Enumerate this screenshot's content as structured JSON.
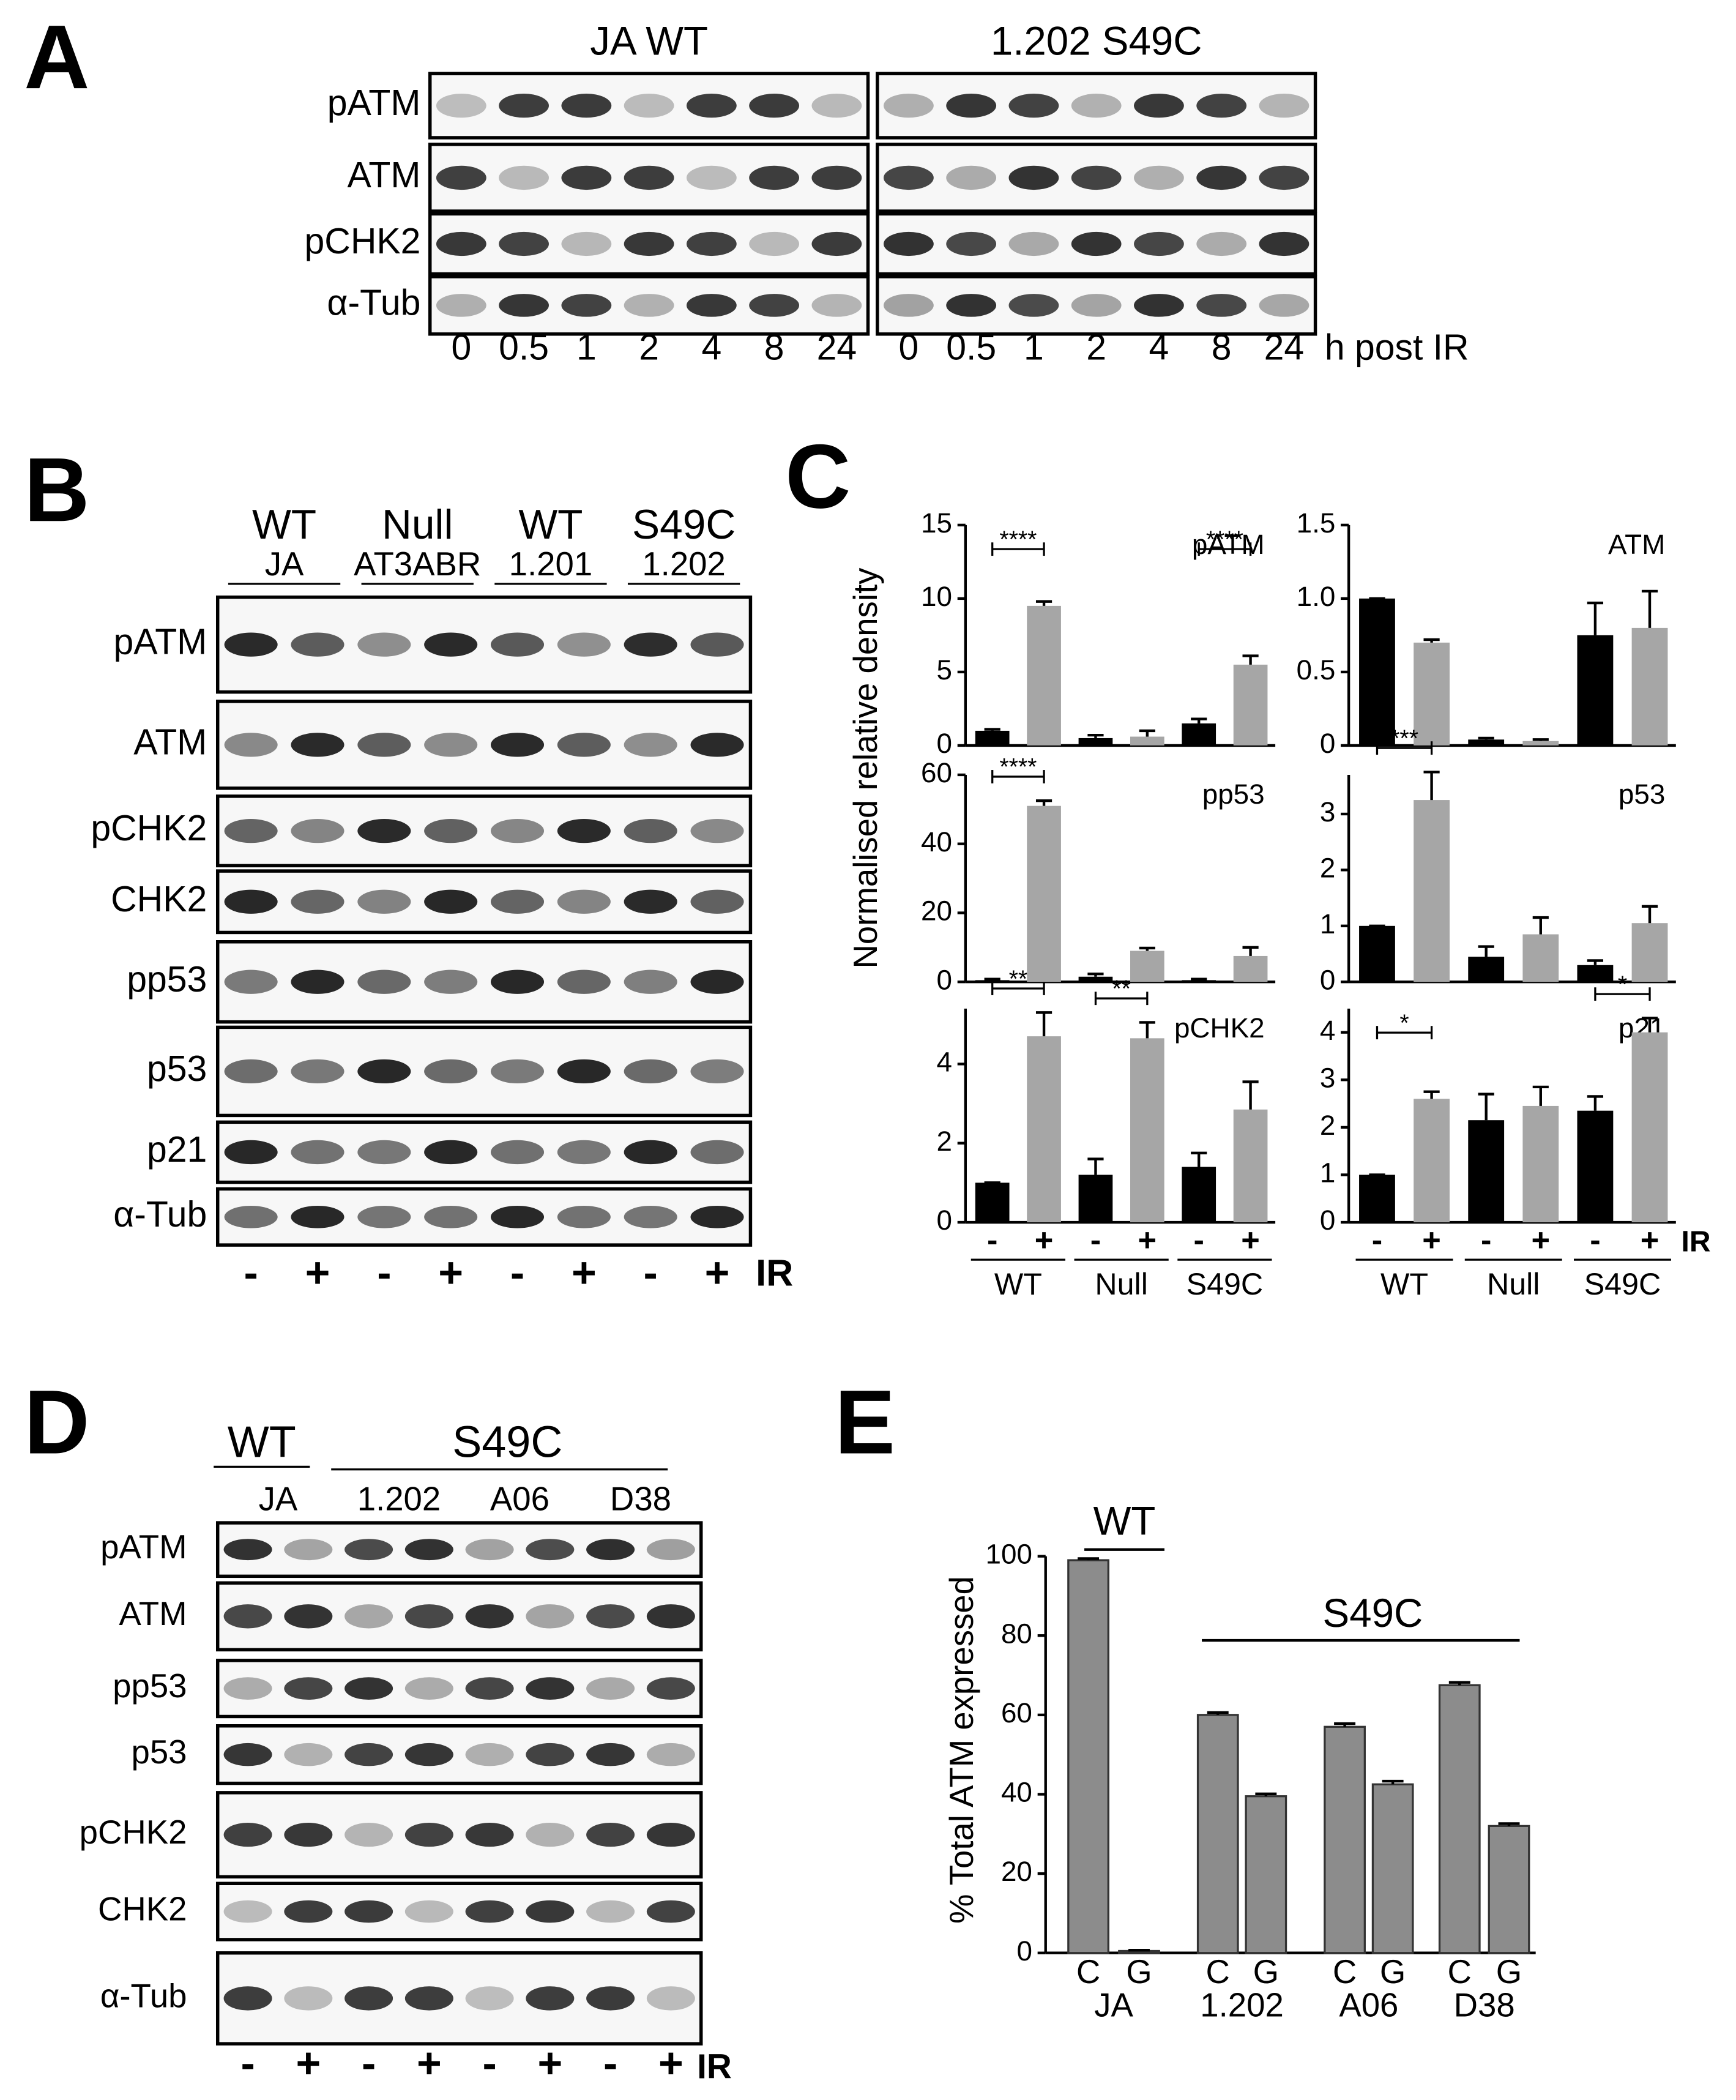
{
  "panel_a": {
    "label": "A",
    "groups": [
      "JA WT",
      "1.202 S49C"
    ],
    "rows": [
      "pATM",
      "ATM",
      "pCHK2",
      "α-Tub"
    ],
    "lanes": [
      "0",
      "0.5",
      "1",
      "2",
      "4",
      "8",
      "24",
      "0",
      "0.5",
      "1",
      "2",
      "4",
      "8",
      "24"
    ],
    "lane_unit": "h post IR"
  },
  "panel_b": {
    "label": "B",
    "groups": [
      {
        "genotype": "WT",
        "line": "JA"
      },
      {
        "genotype": "Null",
        "line": "AT3ABR"
      },
      {
        "genotype": "WT",
        "line": "1.201"
      },
      {
        "genotype": "S49C",
        "line": "1.202"
      }
    ],
    "rows": [
      "pATM",
      "ATM",
      "pCHK2",
      "CHK2",
      "pp53",
      "p53",
      "p21",
      "α-Tub"
    ],
    "treatment": [
      "-",
      "+",
      "-",
      "+",
      "-",
      "+",
      "-",
      "+"
    ],
    "treatment_label": "IR"
  },
  "panel_c": {
    "label": "C",
    "ylabel": "Normalised relative density",
    "treatment_label": "IR"
  },
  "panel_d": {
    "label": "D",
    "genotypes": [
      "WT",
      "S49C"
    ],
    "lines": [
      "JA",
      "1.202",
      "A06",
      "D38"
    ],
    "rows": [
      "pATM",
      "ATM",
      "pp53",
      "p53",
      "pCHK2",
      "CHK2",
      "α-Tub"
    ],
    "treatment": [
      "-",
      "+",
      "-",
      "+",
      "-",
      "+",
      "-",
      "+"
    ],
    "treatment_label": "IR"
  },
  "panel_e": {
    "label": "E"
  },
  "chart_data": [
    {
      "type": "bar",
      "title": "pATM",
      "ylim": [
        0,
        15
      ],
      "yticks": [
        0,
        5,
        10,
        15
      ],
      "series": [
        {
          "color": "#000000",
          "values": [
            1,
            0.5,
            1.5
          ],
          "errors": [
            0.1,
            0.2,
            0.3
          ]
        },
        {
          "color": "#a6a6a6",
          "values": [
            9.5,
            0.6,
            5.5
          ],
          "errors": [
            0.3,
            0.4,
            0.6
          ]
        }
      ],
      "significance": [
        "****",
        null,
        "****"
      ]
    },
    {
      "type": "bar",
      "title": "ATM",
      "ylim": [
        0,
        1.5
      ],
      "yticks": [
        0,
        0.5,
        {
          "value": 1,
          "label": "1.0"
        },
        1.5
      ],
      "series": [
        {
          "color": "#000000",
          "values": [
            1,
            0.04,
            0.75
          ],
          "errors": [
            0,
            0.01,
            0.22
          ]
        },
        {
          "color": "#a6a6a6",
          "values": [
            0.7,
            0.03,
            0.8
          ],
          "errors": [
            0.02,
            0.01,
            0.25
          ]
        }
      ],
      "significance": [
        null,
        null,
        null
      ]
    },
    {
      "type": "bar",
      "title": "pp53",
      "ylim": [
        0,
        60
      ],
      "yticks": [
        0,
        20,
        40,
        60
      ],
      "series": [
        {
          "color": "#000000",
          "values": [
            0.5,
            1.5,
            0.5
          ],
          "errors": [
            0.3,
            0.8,
            0.3
          ]
        },
        {
          "color": "#a6a6a6",
          "values": [
            51,
            9,
            7.5
          ],
          "errors": [
            1.5,
            0.8,
            2.5
          ]
        }
      ],
      "significance": [
        "****",
        null,
        null
      ]
    },
    {
      "type": "bar",
      "title": "p53",
      "ylim": [
        0,
        3.7
      ],
      "yticks": [
        0,
        1,
        2,
        3
      ],
      "series": [
        {
          "color": "#000000",
          "values": [
            1,
            0.45,
            0.3
          ],
          "errors": [
            0,
            0.18,
            0.08
          ]
        },
        {
          "color": "#a6a6a6",
          "values": [
            3.25,
            0.85,
            1.05
          ],
          "errors": [
            0.5,
            0.3,
            0.3
          ]
        }
      ],
      "significance": [
        "***",
        null,
        null
      ]
    },
    {
      "type": "bar",
      "title": "pCHK2",
      "ylim": [
        0,
        5.4
      ],
      "yticks": [
        0,
        2,
        4
      ],
      "categories": [
        "WT",
        "Null",
        "S49C"
      ],
      "series": [
        {
          "name": "-",
          "color": "#000000",
          "values": [
            1,
            1.2,
            1.4
          ],
          "errors": [
            0,
            0.4,
            0.35
          ]
        },
        {
          "name": "+",
          "color": "#a6a6a6",
          "values": [
            4.7,
            4.65,
            2.85
          ],
          "errors": [
            0.6,
            0.4,
            0.7
          ]
        }
      ],
      "significance": [
        "**",
        "**",
        null
      ]
    },
    {
      "type": "bar",
      "title": "p21",
      "ylim": [
        0,
        4.5
      ],
      "yticks": [
        0,
        1,
        2,
        3,
        4
      ],
      "categories": [
        "WT",
        "Null",
        "S49C"
      ],
      "series": [
        {
          "name": "-",
          "color": "#000000",
          "values": [
            1,
            2.15,
            2.35
          ],
          "errors": [
            0,
            0.55,
            0.3
          ]
        },
        {
          "name": "+",
          "color": "#a6a6a6",
          "values": [
            2.6,
            2.45,
            4
          ],
          "errors": [
            0.15,
            0.4,
            0.3
          ]
        }
      ],
      "significance": [
        "*",
        null,
        "*"
      ]
    },
    {
      "type": "bar",
      "ylabel": "% Total ATM expressed",
      "ylim": [
        0,
        100
      ],
      "yticks": [
        0,
        20,
        40,
        60,
        80,
        100
      ],
      "categories": [
        "C",
        "G",
        "C",
        "G",
        "C",
        "G",
        "C",
        "G"
      ],
      "groups": [
        "JA",
        "1.202",
        "A06",
        "D38"
      ],
      "brackets": [
        "WT",
        "S49C"
      ],
      "color": "#8c8c8c",
      "values": [
        99,
        0.5,
        60,
        39.5,
        57,
        42.5,
        67.5,
        32
      ],
      "errors": [
        0.4,
        0.2,
        0.6,
        0.6,
        0.8,
        0.8,
        0.7,
        0.6
      ]
    }
  ]
}
